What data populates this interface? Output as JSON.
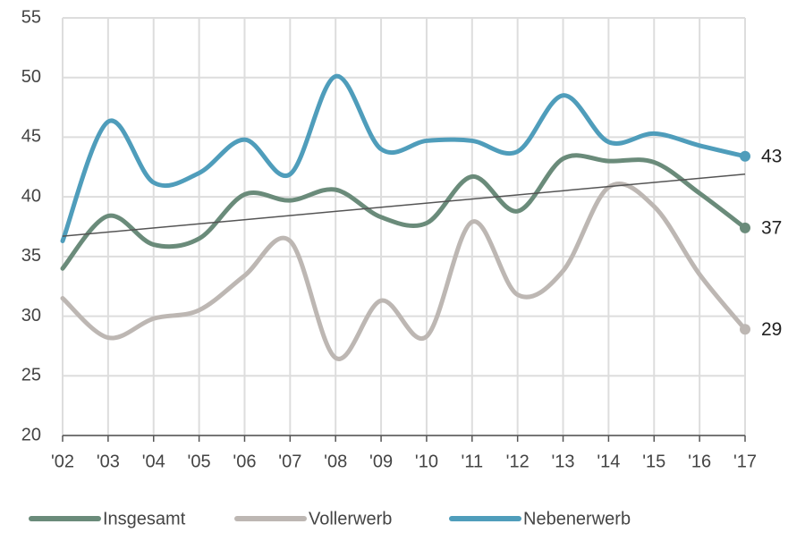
{
  "chart_data": {
    "type": "line",
    "categories": [
      "'02",
      "'03",
      "'04",
      "'05",
      "'06",
      "'07",
      "'08",
      "'09",
      "'10",
      "'11",
      "'12",
      "'13",
      "'14",
      "'15",
      "'16",
      "'17"
    ],
    "series": [
      {
        "name": "Insgesamt",
        "color": "#6a8b7a",
        "values": [
          34.0,
          38.4,
          36.0,
          36.5,
          40.2,
          39.7,
          40.6,
          38.3,
          37.8,
          41.7,
          38.8,
          43.2,
          43.0,
          42.9,
          40.3,
          37.4
        ],
        "value_labels": [
          null,
          null,
          null,
          null,
          null,
          null,
          null,
          null,
          null,
          null,
          null,
          null,
          null,
          null,
          null,
          "37"
        ]
      },
      {
        "name": "Vollerwerb",
        "color": "#bdb7b3",
        "values": [
          31.5,
          28.2,
          29.8,
          30.5,
          33.4,
          36.3,
          26.5,
          31.3,
          28.3,
          37.9,
          31.8,
          33.8,
          40.8,
          39.2,
          33.5,
          28.9
        ],
        "value_labels": [
          null,
          null,
          null,
          null,
          null,
          null,
          null,
          null,
          null,
          null,
          null,
          null,
          null,
          null,
          null,
          "29"
        ]
      },
      {
        "name": "Nebenerwerb",
        "color": "#4f9dbb",
        "values": [
          36.3,
          46.3,
          41.2,
          42.0,
          44.8,
          41.9,
          50.1,
          44.0,
          44.7,
          44.7,
          43.8,
          48.5,
          44.6,
          45.3,
          44.3,
          43.4
        ],
        "value_labels": [
          null,
          null,
          null,
          null,
          null,
          null,
          null,
          null,
          null,
          null,
          null,
          null,
          null,
          null,
          null,
          "43"
        ]
      }
    ],
    "trendline": {
      "values": [
        36.7,
        41.9
      ],
      "color": "#555555"
    },
    "ylim": [
      20,
      55
    ],
    "yticks": [
      20,
      25,
      30,
      35,
      40,
      45,
      50,
      55
    ],
    "grid": true,
    "legend": "bottom"
  }
}
